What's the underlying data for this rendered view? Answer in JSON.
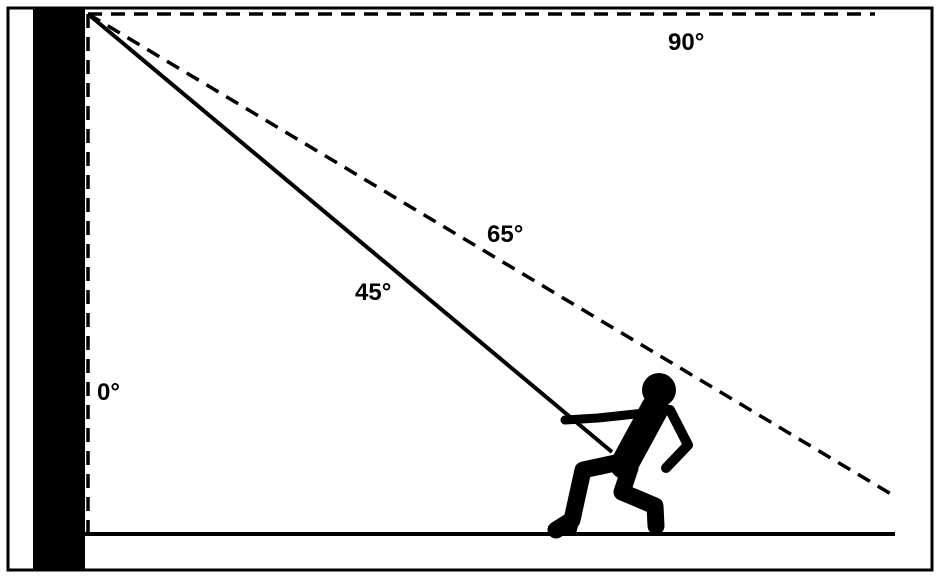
{
  "labels": {
    "angle_0": "0°",
    "angle_45": "45°",
    "angle_65": "65°",
    "angle_90": "90°"
  },
  "colors": {
    "ink": "#000000",
    "background": "#ffffff"
  },
  "icons": {
    "figure": "person-pulling-rope-icon"
  }
}
